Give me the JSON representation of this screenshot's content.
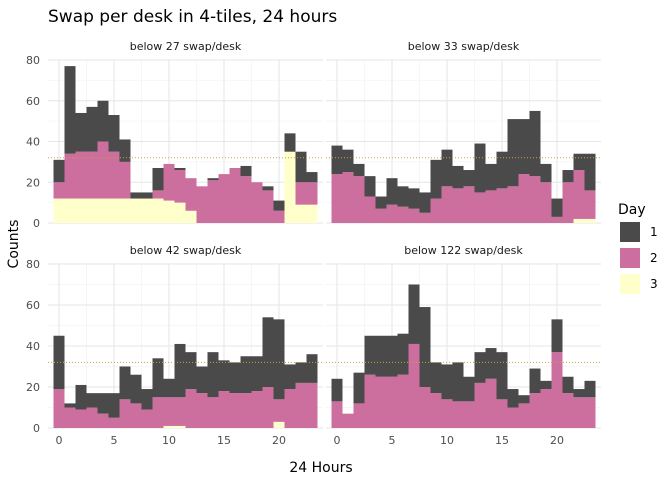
{
  "chart_data": {
    "type": "bar",
    "stacked": true,
    "title": "Swap per desk in 4-tiles, 24 hours",
    "xlabel": "24 Hours",
    "ylabel": "Counts",
    "x": [
      0,
      1,
      2,
      3,
      4,
      5,
      6,
      7,
      8,
      9,
      10,
      11,
      12,
      13,
      14,
      15,
      16,
      17,
      18,
      19,
      20,
      21,
      22,
      23
    ],
    "xlim": [
      -1,
      24
    ],
    "ylim": [
      0,
      80
    ],
    "x_ticks": [
      0,
      5,
      10,
      15,
      20
    ],
    "y_ticks": [
      0,
      20,
      40,
      60,
      80
    ],
    "reference_line": 32,
    "grid": true,
    "legend": {
      "title": "Day",
      "placement": "right",
      "entries": [
        {
          "label": "1",
          "color": "#4a4a4a"
        },
        {
          "label": "2",
          "color": "#cc6f9f"
        },
        {
          "label": "3",
          "color": "#ffffcc"
        }
      ]
    },
    "series_order": [
      "3",
      "2",
      "1"
    ],
    "panels": [
      {
        "label": "below 27 swap/desk",
        "series": [
          {
            "name": "3",
            "values": [
              12,
              12,
              12,
              12,
              12,
              12,
              12,
              12,
              12,
              12,
              11,
              10,
              6,
              0,
              0,
              0,
              0,
              0,
              0,
              0,
              0,
              35,
              9,
              9
            ]
          },
          {
            "name": "2",
            "values": [
              8,
              22,
              23,
              23,
              28,
              23,
              18,
              0,
              0,
              4,
              18,
              16,
              16,
              18,
              21,
              24,
              27,
              23,
              20,
              16,
              6,
              0,
              11,
              11
            ]
          },
          {
            "name": "1",
            "values": [
              11,
              43,
              19,
              22,
              20,
              18,
              11,
              3,
              3,
              11,
              0,
              1,
              0,
              0,
              1,
              0,
              0,
              5,
              0,
              2,
              5,
              9,
              15,
              5
            ]
          }
        ]
      },
      {
        "label": "below 33 swap/desk",
        "series": [
          {
            "name": "3",
            "values": [
              0,
              0,
              0,
              0,
              0,
              0,
              0,
              0,
              0,
              0,
              0,
              0,
              0,
              0,
              0,
              0,
              0,
              0,
              0,
              0,
              0,
              0,
              2,
              2
            ]
          },
          {
            "name": "2",
            "values": [
              24,
              25,
              23,
              13,
              7,
              9,
              8,
              7,
              5,
              12,
              18,
              17,
              18,
              15,
              16,
              17,
              18,
              24,
              23,
              20,
              3,
              20,
              24,
              14
            ]
          },
          {
            "name": "1",
            "values": [
              14,
              11,
              6,
              10,
              6,
              13,
              10,
              10,
              10,
              19,
              18,
              11,
              8,
              24,
              13,
              18,
              33,
              27,
              32,
              9,
              9,
              6,
              8,
              18
            ]
          }
        ]
      },
      {
        "label": "below 42 swap/desk",
        "series": [
          {
            "name": "3",
            "values": [
              0,
              0,
              0,
              0,
              0,
              0,
              0,
              0,
              0,
              0,
              1,
              1,
              0,
              0,
              0,
              0,
              0,
              0,
              0,
              0,
              3,
              0,
              0,
              0
            ]
          },
          {
            "name": "2",
            "values": [
              19,
              10,
              9,
              10,
              7,
              5,
              14,
              12,
              9,
              15,
              14,
              14,
              19,
              17,
              15,
              18,
              17,
              17,
              18,
              20,
              11,
              19,
              22,
              22
            ]
          },
          {
            "name": "1",
            "values": [
              26,
              2,
              12,
              7,
              10,
              12,
              16,
              14,
              10,
              19,
              9,
              26,
              18,
              13,
              22,
              15,
              15,
              18,
              17,
              34,
              39,
              12,
              10,
              14
            ]
          }
        ]
      },
      {
        "label": "below 122 swap/desk",
        "series": [
          {
            "name": "3",
            "values": [
              0,
              0,
              0,
              0,
              0,
              0,
              0,
              0,
              0,
              0,
              0,
              0,
              0,
              0,
              0,
              0,
              0,
              0,
              0,
              0,
              0,
              0,
              0,
              0
            ]
          },
          {
            "name": "2",
            "values": [
              13,
              7,
              12,
              26,
              25,
              25,
              26,
              41,
              20,
              17,
              14,
              13,
              13,
              22,
              24,
              14,
              10,
              12,
              17,
              19,
              37,
              17,
              15,
              15
            ]
          },
          {
            "name": "1",
            "values": [
              11,
              0,
              15,
              19,
              20,
              20,
              20,
              29,
              39,
              15,
              17,
              19,
              12,
              15,
              15,
              23,
              9,
              4,
              12,
              4,
              16,
              8,
              4,
              8
            ]
          }
        ]
      }
    ]
  }
}
